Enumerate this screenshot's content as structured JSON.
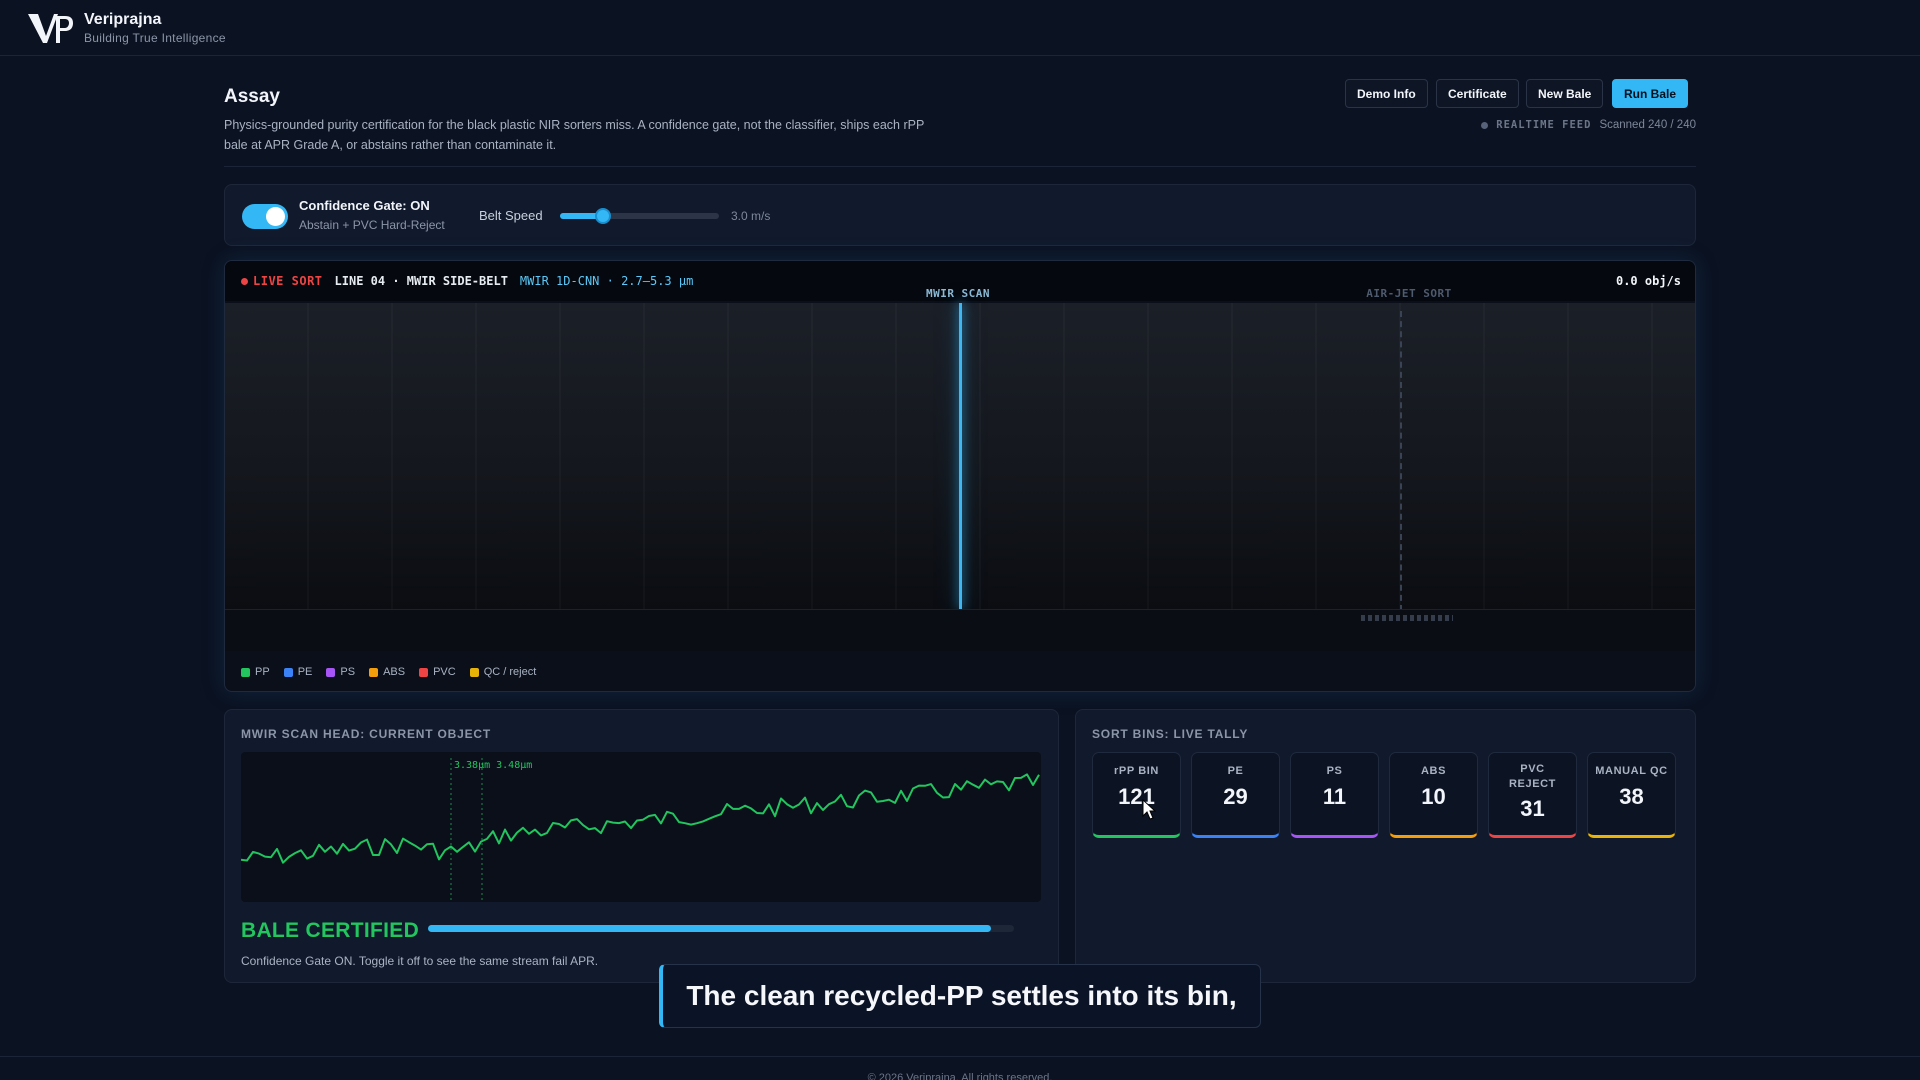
{
  "brand": {
    "name": "Veriprajna",
    "tagline": "Building True Intelligence"
  },
  "header": {
    "title": "Assay",
    "description": "Physics-grounded purity certification for the black plastic NIR sorters miss. A confidence gate, not the classifier, ships each rPP bale at APR Grade A, or abstains rather than contaminate it.",
    "buttons": [
      "Demo Info",
      "Certificate",
      "New Bale",
      "Run Bale"
    ],
    "feed_label": "REALTIME FEED",
    "scanned": "Scanned 240 / 240"
  },
  "controls": {
    "gate_title": "Confidence Gate: ON",
    "gate_sub": "Abstain + PVC Hard-Reject",
    "gate_on": true,
    "speed_label": "Belt Speed",
    "speed_value": "3.0 m/s",
    "speed_fraction": 0.27
  },
  "sorter": {
    "live": "LIVE SORT",
    "line": "LINE 04 · MWIR SIDE-BELT",
    "model": "MWIR 1D-CNN · 2.7–5.3 µm",
    "rate": "0.0 obj/s",
    "scan_label": "MWIR SCAN",
    "jet_label": "AIR-JET SORT",
    "legend": [
      {
        "label": "PP",
        "color": "#22c55e"
      },
      {
        "label": "PE",
        "color": "#3b82f6"
      },
      {
        "label": "PS",
        "color": "#a855f7"
      },
      {
        "label": "ABS",
        "color": "#f59e0b"
      },
      {
        "label": "PVC",
        "color": "#ef4444"
      },
      {
        "label": "QC / reject",
        "color": "#eab308"
      }
    ]
  },
  "scan_panel": {
    "title": "MWIR SCAN HEAD: CURRENT OBJECT",
    "peak_labels": "3.38µm  3.48µm",
    "status": "BALE CERTIFIED",
    "progress": 0.96,
    "note": "Confidence Gate ON. Toggle it off to see the same stream fail APR."
  },
  "bins_panel": {
    "title": "SORT BINS: LIVE TALLY",
    "bins": [
      {
        "label": "rPP BIN",
        "count": "121",
        "color": "#22c55e"
      },
      {
        "label": "PE",
        "count": "29",
        "color": "#3b82f6"
      },
      {
        "label": "PS",
        "count": "11",
        "color": "#a855f7"
      },
      {
        "label": "ABS",
        "count": "10",
        "color": "#f59e0b"
      },
      {
        "label": "PVC REJECT",
        "count": "31",
        "color": "#ef4444"
      },
      {
        "label": "MANUAL QC",
        "count": "38",
        "color": "#eab308"
      }
    ]
  },
  "caption": "The clean recycled-PP settles into its bin,",
  "footer": "© 2026 Veriprajna. All rights reserved."
}
